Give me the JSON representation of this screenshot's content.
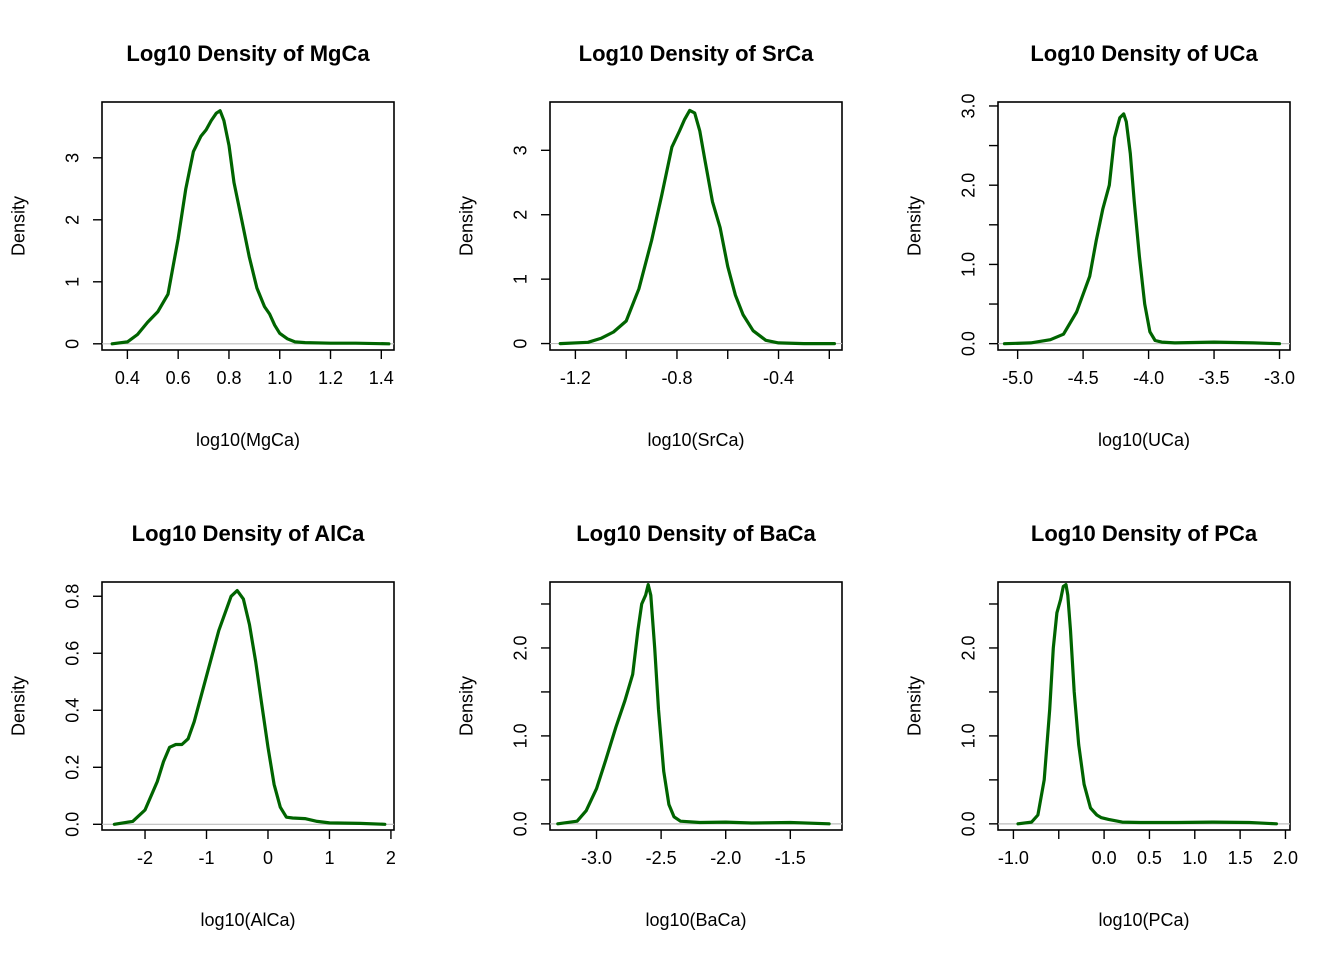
{
  "style": {
    "curve_color": "#006400",
    "baseline_color": "#bebebe",
    "background": "#ffffff"
  },
  "chart_data": [
    {
      "type": "line",
      "title": "Log10 Density of MgCa",
      "xlabel": "log10(MgCa)",
      "ylabel": "Density",
      "xlim": [
        0.3,
        1.45
      ],
      "ylim": [
        -0.1,
        3.9
      ],
      "xticks": [
        0.4,
        0.6,
        0.8,
        1.0,
        1.2,
        1.4
      ],
      "xtick_labels": [
        "0.4",
        "0.6",
        "0.8",
        "1.0",
        "1.2",
        "1.4"
      ],
      "yticks": [
        0,
        1,
        2,
        3
      ],
      "ytick_labels": [
        "0",
        "1",
        "2",
        "3"
      ],
      "baseline": 0,
      "x": [
        0.34,
        0.4,
        0.44,
        0.48,
        0.52,
        0.56,
        0.6,
        0.63,
        0.66,
        0.69,
        0.71,
        0.73,
        0.75,
        0.765,
        0.78,
        0.8,
        0.82,
        0.85,
        0.88,
        0.91,
        0.94,
        0.96,
        0.98,
        1.0,
        1.03,
        1.06,
        1.1,
        1.2,
        1.3,
        1.43
      ],
      "y": [
        0.0,
        0.03,
        0.15,
        0.35,
        0.52,
        0.8,
        1.7,
        2.5,
        3.1,
        3.35,
        3.45,
        3.6,
        3.72,
        3.76,
        3.6,
        3.2,
        2.6,
        2.0,
        1.4,
        0.9,
        0.6,
        0.48,
        0.3,
        0.17,
        0.08,
        0.03,
        0.02,
        0.01,
        0.01,
        0.0
      ]
    },
    {
      "type": "line",
      "title": "Log10 Density of SrCa",
      "xlabel": "log10(SrCa)",
      "ylabel": "Density",
      "xlim": [
        -1.3,
        -0.15
      ],
      "ylim": [
        -0.1,
        3.75
      ],
      "xticks": [
        -1.2,
        -1.0,
        -0.8,
        -0.6,
        -0.4,
        -0.2
      ],
      "xtick_labels": [
        "-1.2",
        "",
        "-0.8",
        "",
        "-0.4",
        ""
      ],
      "yticks": [
        0,
        1,
        2,
        3
      ],
      "ytick_labels": [
        "0",
        "1",
        "2",
        "3"
      ],
      "baseline": 0,
      "x": [
        -1.26,
        -1.15,
        -1.1,
        -1.05,
        -1.0,
        -0.95,
        -0.9,
        -0.86,
        -0.82,
        -0.79,
        -0.77,
        -0.75,
        -0.73,
        -0.71,
        -0.69,
        -0.66,
        -0.63,
        -0.6,
        -0.57,
        -0.54,
        -0.5,
        -0.45,
        -0.4,
        -0.3,
        -0.18
      ],
      "y": [
        0.0,
        0.02,
        0.08,
        0.18,
        0.35,
        0.85,
        1.6,
        2.3,
        3.05,
        3.3,
        3.48,
        3.62,
        3.58,
        3.3,
        2.85,
        2.2,
        1.8,
        1.2,
        0.75,
        0.45,
        0.2,
        0.05,
        0.01,
        0.0,
        0.0
      ]
    },
    {
      "type": "line",
      "title": "Log10 Density of UCa",
      "xlabel": "log10(UCa)",
      "ylabel": "Density",
      "xlim": [
        -5.15,
        -2.92
      ],
      "ylim": [
        -0.08,
        3.05
      ],
      "xticks": [
        -5.0,
        -4.5,
        -4.0,
        -3.5,
        -3.0
      ],
      "xtick_labels": [
        "-5.0",
        "-4.5",
        "-4.0",
        "-3.5",
        "-3.0"
      ],
      "yticks": [
        0.0,
        0.5,
        1.0,
        1.5,
        2.0,
        2.5,
        3.0
      ],
      "ytick_labels": [
        "0.0",
        "",
        "1.0",
        "",
        "2.0",
        "",
        "3.0"
      ],
      "baseline": 0,
      "x": [
        -5.1,
        -4.9,
        -4.75,
        -4.65,
        -4.55,
        -4.45,
        -4.4,
        -4.35,
        -4.3,
        -4.26,
        -4.22,
        -4.19,
        -4.17,
        -4.14,
        -4.11,
        -4.07,
        -4.03,
        -3.99,
        -3.95,
        -3.9,
        -3.8,
        -3.5,
        -3.2,
        -3.0
      ],
      "y": [
        0.0,
        0.01,
        0.05,
        0.12,
        0.4,
        0.85,
        1.3,
        1.7,
        2.0,
        2.6,
        2.85,
        2.9,
        2.8,
        2.4,
        1.8,
        1.1,
        0.5,
        0.15,
        0.04,
        0.02,
        0.01,
        0.02,
        0.01,
        0.0
      ]
    },
    {
      "type": "line",
      "title": "Log10 Density of AlCa",
      "xlabel": "log10(AlCa)",
      "ylabel": "Density",
      "xlim": [
        -2.7,
        2.05
      ],
      "ylim": [
        -0.02,
        0.85
      ],
      "xticks": [
        -2,
        -1,
        0,
        1,
        2
      ],
      "xtick_labels": [
        "-2",
        "-1",
        "0",
        "1",
        "2"
      ],
      "yticks": [
        0.0,
        0.2,
        0.4,
        0.6,
        0.8
      ],
      "ytick_labels": [
        "0.0",
        "0.2",
        "0.4",
        "0.6",
        "0.8"
      ],
      "baseline": 0,
      "x": [
        -2.5,
        -2.2,
        -2.0,
        -1.8,
        -1.7,
        -1.6,
        -1.5,
        -1.4,
        -1.3,
        -1.2,
        -1.0,
        -0.8,
        -0.6,
        -0.5,
        -0.4,
        -0.3,
        -0.2,
        -0.1,
        0.0,
        0.1,
        0.2,
        0.3,
        0.4,
        0.6,
        0.8,
        1.0,
        1.5,
        1.9
      ],
      "y": [
        0.0,
        0.01,
        0.05,
        0.15,
        0.22,
        0.27,
        0.28,
        0.28,
        0.3,
        0.36,
        0.52,
        0.68,
        0.8,
        0.82,
        0.79,
        0.7,
        0.57,
        0.42,
        0.27,
        0.14,
        0.06,
        0.025,
        0.022,
        0.02,
        0.01,
        0.005,
        0.003,
        0.0
      ]
    },
    {
      "type": "line",
      "title": "Log10 Density of BaCa",
      "xlabel": "log10(BaCa)",
      "ylabel": "Density",
      "xlim": [
        -3.36,
        -1.1
      ],
      "ylim": [
        -0.07,
        2.75
      ],
      "xticks": [
        -3.0,
        -2.5,
        -2.0,
        -1.5
      ],
      "xtick_labels": [
        "-3.0",
        "-2.5",
        "-2.0",
        "-1.5"
      ],
      "yticks": [
        0.0,
        0.5,
        1.0,
        1.5,
        2.0,
        2.5
      ],
      "ytick_labels": [
        "0.0",
        "",
        "1.0",
        "",
        "2.0",
        ""
      ],
      "baseline": 0,
      "x": [
        -3.3,
        -3.15,
        -3.08,
        -3.0,
        -2.93,
        -2.85,
        -2.78,
        -2.72,
        -2.68,
        -2.65,
        -2.62,
        -2.6,
        -2.58,
        -2.55,
        -2.52,
        -2.48,
        -2.44,
        -2.4,
        -2.35,
        -2.2,
        -2.0,
        -1.8,
        -1.5,
        -1.2
      ],
      "y": [
        0.0,
        0.03,
        0.15,
        0.4,
        0.72,
        1.1,
        1.4,
        1.7,
        2.2,
        2.5,
        2.6,
        2.72,
        2.6,
        2.0,
        1.3,
        0.6,
        0.22,
        0.08,
        0.03,
        0.015,
        0.02,
        0.01,
        0.015,
        0.0
      ]
    },
    {
      "type": "line",
      "title": "Log10 Density of PCa",
      "xlabel": "log10(PCa)",
      "ylabel": "Density",
      "xlim": [
        -1.17,
        2.05
      ],
      "ylim": [
        -0.07,
        2.75
      ],
      "xticks": [
        -1.0,
        -0.5,
        0.0,
        0.5,
        1.0,
        1.5,
        2.0
      ],
      "xtick_labels": [
        "-1.0",
        "",
        "0.0",
        "0.5",
        "1.0",
        "1.5",
        "2.0"
      ],
      "yticks": [
        0.0,
        0.5,
        1.0,
        1.5,
        2.0,
        2.5
      ],
      "ytick_labels": [
        "0.0",
        "",
        "1.0",
        "",
        "2.0",
        ""
      ],
      "baseline": 0,
      "x": [
        -0.95,
        -0.8,
        -0.73,
        -0.66,
        -0.6,
        -0.56,
        -0.52,
        -0.48,
        -0.45,
        -0.42,
        -0.4,
        -0.37,
        -0.33,
        -0.28,
        -0.22,
        -0.15,
        -0.08,
        -0.03,
        0.05,
        0.2,
        0.4,
        0.8,
        1.2,
        1.6,
        1.9
      ],
      "y": [
        0.0,
        0.02,
        0.1,
        0.5,
        1.3,
        2.0,
        2.4,
        2.55,
        2.7,
        2.72,
        2.6,
        2.2,
        1.5,
        0.9,
        0.45,
        0.18,
        0.1,
        0.07,
        0.05,
        0.02,
        0.015,
        0.015,
        0.02,
        0.015,
        0.0
      ]
    }
  ]
}
